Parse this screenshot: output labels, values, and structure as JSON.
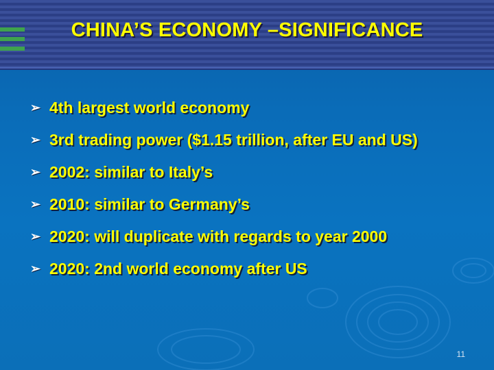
{
  "slide": {
    "title": "CHINA’S ECONOMY –SIGNIFICANCE",
    "bullet_icon": "arrow-bullet-icon",
    "bullets": [
      "4th largest world economy",
      "3rd trading power ($1.15 trillion, after EU and US)",
      "2002: similar to Italy’s",
      "2010: similar to Germany’s",
      "2020: will duplicate with regards to year 2000",
      "2020: 2nd world economy after US"
    ],
    "page_number": "11"
  },
  "colors": {
    "background": "#0a6cb8",
    "header_band": "#34489a",
    "title_text": "#ffff00",
    "bullet_text": "#ffff00",
    "accent_green": "#3fa34d"
  }
}
